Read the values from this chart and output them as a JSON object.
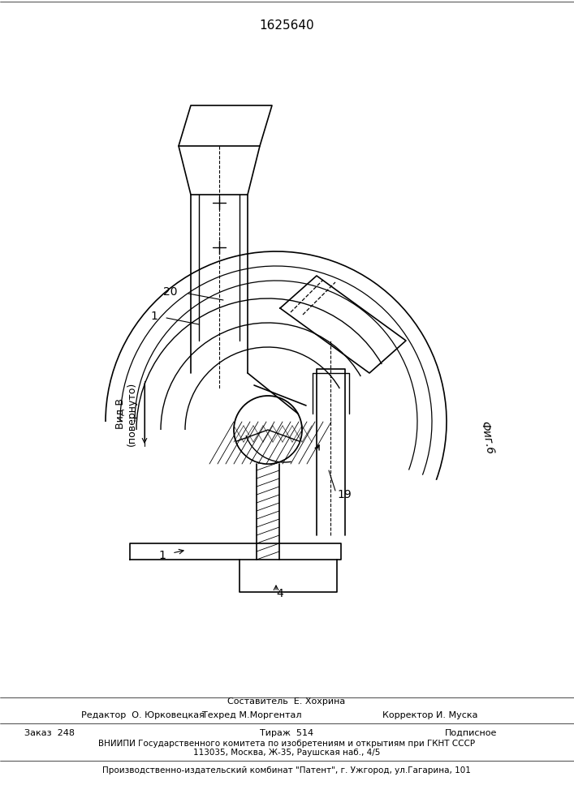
{
  "title": "1625640",
  "fig_label": "Фиг.6",
  "view_label": "Вид В\n(повернуто)",
  "label_1": "1",
  "label_1b": "1",
  "label_19": "19",
  "label_20": "20",
  "bg_color": "#ffffff",
  "line_color": "#000000",
  "footer_lines": [
    "Составитель  Е. Хохрина",
    "Редактор  О. Юрковецкая        Техред М.Моргентал              Корректор И. Муска",
    "Заказ  248                            Тираж  514                        Подписное",
    "ВНИИПИ Государственного комитета по изобретениям и открытиям при ГКНТ СССР",
    "113035, Москва, Ж-35, Раушская наб., 4/5",
    "Производственно-издательский комбинат \"Патент\", г. Ужгород, ул.Гагарина, 101"
  ]
}
